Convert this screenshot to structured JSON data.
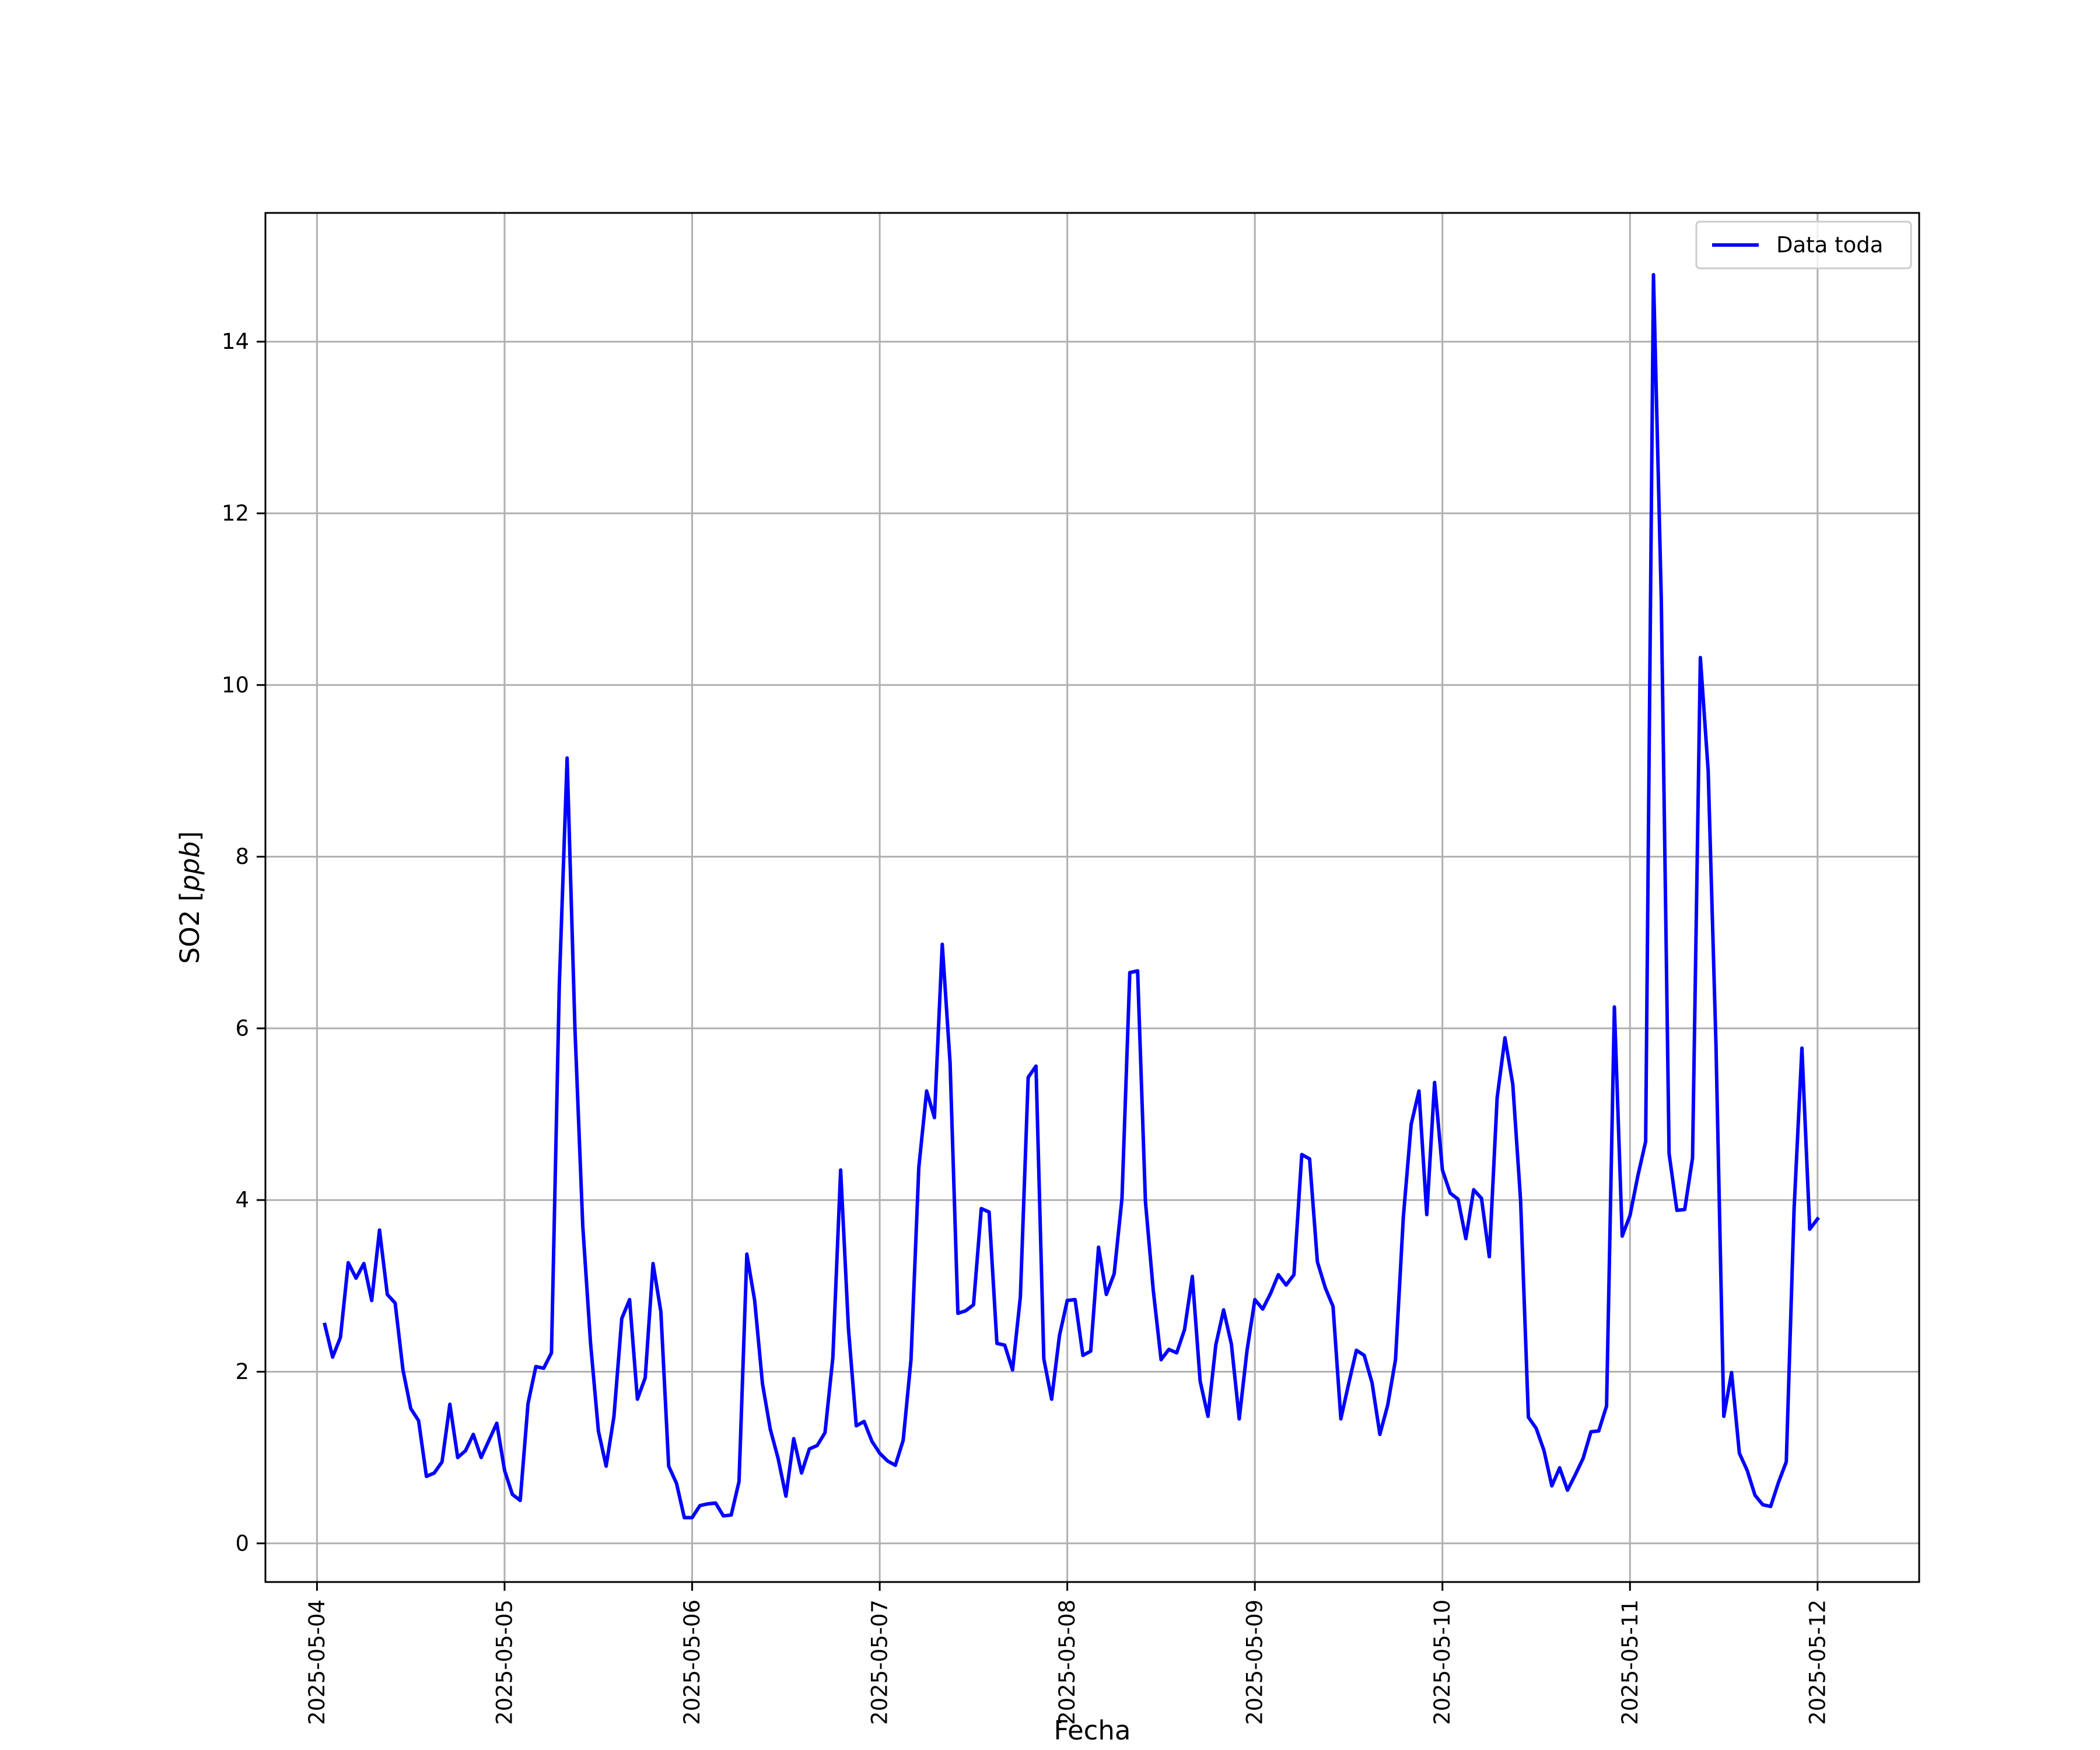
{
  "chart_data": {
    "type": "line",
    "xlabel": "Fecha",
    "ylabel": "SO2 [ppb]",
    "ylabel_parts": {
      "plain": "SO2 [",
      "italic": "ppb",
      "close": "]"
    },
    "x_ticks": [
      "2025-05-04",
      "2025-05-05",
      "2025-05-06",
      "2025-05-07",
      "2025-05-08",
      "2025-05-09",
      "2025-05-10",
      "2025-05-11",
      "2025-05-12"
    ],
    "y_ticks": [
      0,
      2,
      4,
      6,
      8,
      10,
      12,
      14
    ],
    "xlim": [
      "2025-05-03T17:24",
      "2025-05-12T13:00"
    ],
    "ylim": [
      -0.45,
      15.5
    ],
    "grid": true,
    "legend_position": "top-right",
    "series": [
      {
        "name": "Data toda",
        "color": "#0000ff",
        "x_start": "2025-05-04T01:00",
        "x_step_hours": 1,
        "values": [
          2.55,
          2.17,
          2.4,
          3.27,
          3.09,
          3.26,
          2.83,
          3.65,
          2.9,
          2.8,
          2.02,
          1.57,
          1.43,
          0.78,
          0.82,
          0.95,
          1.62,
          1.0,
          1.08,
          1.27,
          1.0,
          1.2,
          1.4,
          0.85,
          0.57,
          0.5,
          1.63,
          2.06,
          2.04,
          2.22,
          6.5,
          9.15,
          6.0,
          3.7,
          2.33,
          1.31,
          0.9,
          1.48,
          2.62,
          2.84,
          1.68,
          1.93,
          3.26,
          2.7,
          0.9,
          0.7,
          0.3,
          0.3,
          0.44,
          0.46,
          0.47,
          0.32,
          0.33,
          0.72,
          3.37,
          2.83,
          1.86,
          1.33,
          0.99,
          0.55,
          1.22,
          0.82,
          1.1,
          1.14,
          1.29,
          2.16,
          4.35,
          2.5,
          1.37,
          1.42,
          1.19,
          1.05,
          0.96,
          0.91,
          1.2,
          2.14,
          4.38,
          5.27,
          4.96,
          6.98,
          5.6,
          2.68,
          2.71,
          2.78,
          3.9,
          3.86,
          2.33,
          2.31,
          2.02,
          2.87,
          5.43,
          5.56,
          2.15,
          1.68,
          2.42,
          2.83,
          2.84,
          2.19,
          2.24,
          3.45,
          2.9,
          3.14,
          4.02,
          6.65,
          6.67,
          3.98,
          2.95,
          2.14,
          2.26,
          2.22,
          2.49,
          3.11,
          1.89,
          1.48,
          2.31,
          2.72,
          2.32,
          1.45,
          2.25,
          2.84,
          2.73,
          2.91,
          3.13,
          3.01,
          3.13,
          4.53,
          4.48,
          3.28,
          2.98,
          2.76,
          1.45,
          1.86,
          2.25,
          2.19,
          1.87,
          1.27,
          1.61,
          2.14,
          3.8,
          4.88,
          5.27,
          3.83,
          5.37,
          4.35,
          4.08,
          4.01,
          3.55,
          4.12,
          4.02,
          3.34,
          5.19,
          5.89,
          5.35,
          4.0,
          1.47,
          1.34,
          1.08,
          0.67,
          0.88,
          0.62,
          0.8,
          0.99,
          1.3,
          1.31,
          1.6,
          6.25,
          3.58,
          3.82,
          4.28,
          4.68,
          14.78,
          11.0,
          4.54,
          3.88,
          3.89,
          4.49,
          10.32,
          9.0,
          5.8,
          1.48,
          1.99,
          1.05,
          0.85,
          0.56,
          0.45,
          0.43,
          0.71,
          0.95,
          3.9,
          5.77,
          3.66,
          3.78
        ]
      }
    ]
  }
}
